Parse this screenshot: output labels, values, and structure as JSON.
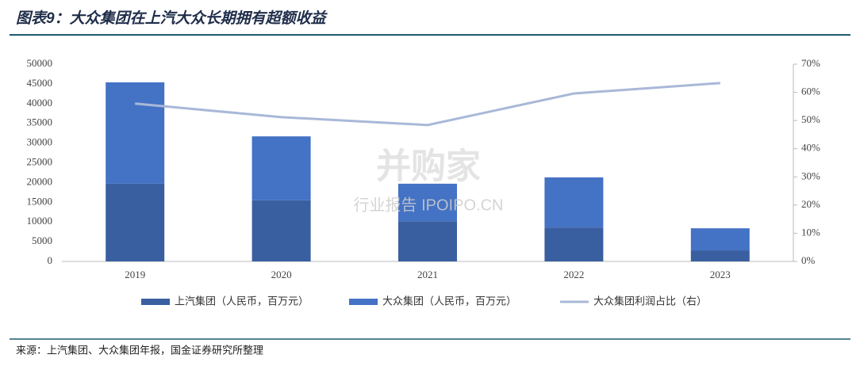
{
  "header": {
    "title": "图表9：大众集团在上汽大众长期拥有超额收益"
  },
  "chart_data": {
    "type": "bar",
    "stacked": true,
    "categories": [
      "2019",
      "2020",
      "2021",
      "2022",
      "2023"
    ],
    "series": [
      {
        "name": "上汽集团（人民币，百万元）",
        "color": "#3a5fa0",
        "values": [
          19700,
          15500,
          10200,
          8600,
          2800
        ]
      },
      {
        "name": "大众集团（人民币，百万元）",
        "color": "#4472c4",
        "values": [
          25700,
          16200,
          9500,
          12700,
          5600
        ]
      },
      {
        "name": "大众集团利润占比（右）",
        "color": "#a9b8d8",
        "type": "line",
        "axis": "y2",
        "values": [
          56,
          51.2,
          48.4,
          59.6,
          63.3
        ]
      }
    ],
    "ylim": [
      0,
      50000
    ],
    "yticks": [
      0,
      5000,
      10000,
      15000,
      20000,
      25000,
      30000,
      35000,
      40000,
      45000,
      50000
    ],
    "y2lim": [
      0,
      70
    ],
    "y2ticks": [
      {
        "value": 0,
        "label": "0%"
      },
      {
        "value": 10,
        "label": "10%"
      },
      {
        "value": 20,
        "label": "20%"
      },
      {
        "value": 30,
        "label": "30%"
      },
      {
        "value": 40,
        "label": "40%"
      },
      {
        "value": 50,
        "label": "50%"
      },
      {
        "value": 60,
        "label": "60%"
      },
      {
        "value": 70,
        "label": "70%"
      }
    ],
    "legend": "bottom"
  },
  "watermark": {
    "brand": "并购家",
    "site": "行业报告 IPOIPO.CN"
  },
  "footer": {
    "source": "来源：上汽集团、大众集团年报，国金证券研究所整理"
  }
}
